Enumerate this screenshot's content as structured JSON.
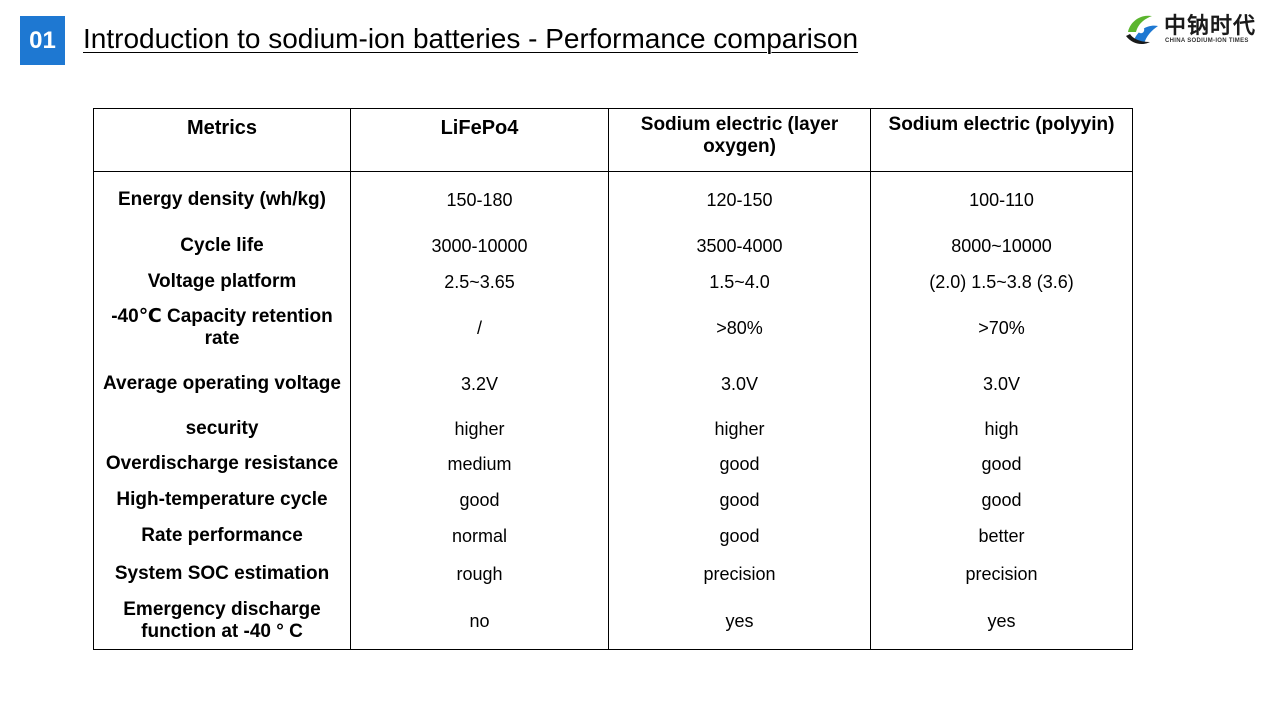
{
  "header": {
    "section_number": "01",
    "title": "Introduction to sodium-ion batteries - Performance comparison"
  },
  "logo": {
    "cn_text": "中钠时代",
    "en_text": "CHINA SODIUM-ION TIMES",
    "colors": {
      "green": "#5bb52e",
      "blue": "#1e78d2",
      "dark": "#1a1a1a"
    }
  },
  "table": {
    "headers": [
      "Metrics",
      "LiFePo4",
      "Sodium electric (layer oxygen)",
      "Sodium electric (polyyin)"
    ],
    "rows": [
      [
        "Energy density  (wh/kg)",
        "150-180",
        "120-150",
        "100-110"
      ],
      [
        "Cycle life",
        "3000-10000",
        "3500-4000",
        "8000~10000"
      ],
      [
        "Voltage platform",
        "2.5~3.65",
        "1.5~4.0",
        "(2.0)  1.5~3.8  (3.6)"
      ],
      [
        "-40℃ Capacity retention rate",
        "/",
        ">80%",
        ">70%"
      ],
      [
        "Average operating voltage",
        "3.2V",
        "3.0V",
        "3.0V"
      ],
      [
        "security",
        "higher",
        "higher",
        "high"
      ],
      [
        "Overdischarge resistance",
        "medium",
        "good",
        "good"
      ],
      [
        "High-temperature cycle",
        "good",
        "good",
        "good"
      ],
      [
        "Rate performance",
        "normal",
        "good",
        "better"
      ],
      [
        "System SOC estimation",
        "rough",
        "precision",
        "precision"
      ],
      [
        "Emergency discharge function at -40 ° C",
        "no",
        "yes",
        "yes"
      ]
    ]
  },
  "colors": {
    "accent": "#1e78d2"
  }
}
